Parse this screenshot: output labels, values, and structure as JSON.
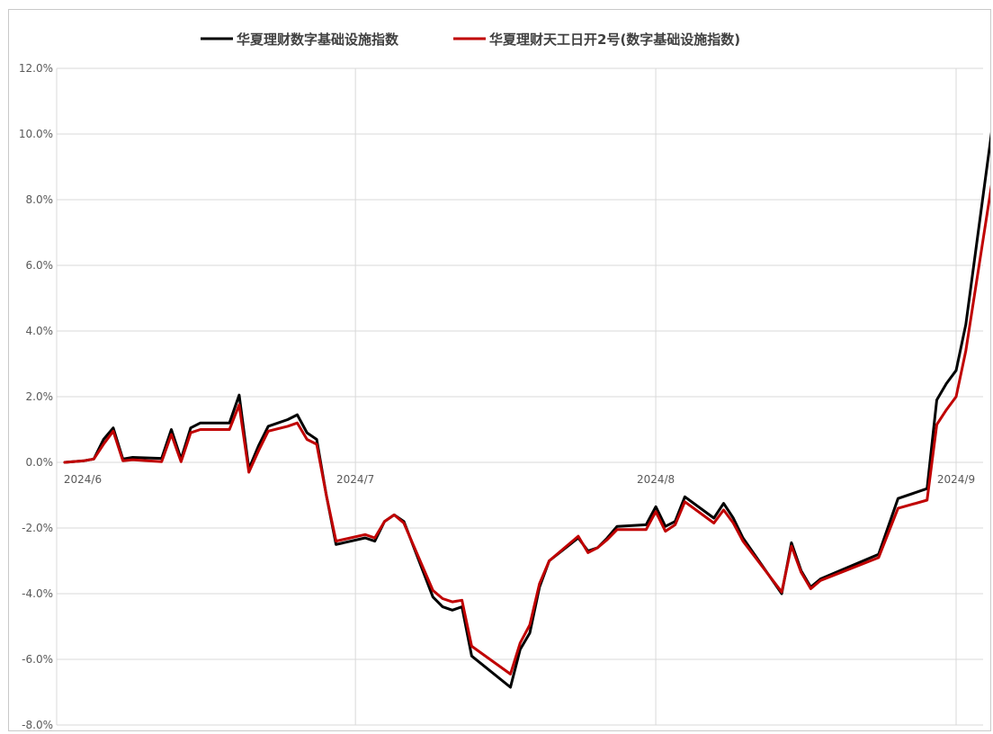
{
  "chart_data": {
    "type": "line",
    "title": "",
    "xlabel": "",
    "ylabel": "",
    "ylim": [
      -8,
      12
    ],
    "y_ticks": [
      12,
      10,
      8,
      6,
      4,
      2,
      0,
      -2,
      -4,
      -6,
      -8
    ],
    "y_tick_labels": [
      "12.0%",
      "10.0%",
      "8.0%",
      "6.0%",
      "4.0%",
      "2.0%",
      "0.0%",
      "-2.0%",
      "-4.0%",
      "-6.0%",
      "-8.0%"
    ],
    "x_range": [
      "2024-06-01",
      "2024-09-02"
    ],
    "x_ticks": [
      {
        "date": "2024-06-01",
        "label": "2024/6"
      },
      {
        "date": "2024-07-01",
        "label": "2024/7"
      },
      {
        "date": "2024-08-01",
        "label": "2024/8"
      },
      {
        "date": "2024-09-01",
        "label": "2024/9"
      }
    ],
    "grid": true,
    "legend_position": "top",
    "series": [
      {
        "name": "华夏理财数字基础设施指数",
        "color": "#000000",
        "points": [
          [
            "2024-06-01",
            0.0
          ],
          [
            "2024-06-03",
            0.05
          ],
          [
            "2024-06-04",
            0.1
          ],
          [
            "2024-06-05",
            0.7
          ],
          [
            "2024-06-06",
            1.05
          ],
          [
            "2024-06-07",
            0.1
          ],
          [
            "2024-06-08",
            0.15
          ],
          [
            "2024-06-11",
            0.12
          ],
          [
            "2024-06-12",
            1.0
          ],
          [
            "2024-06-13",
            0.1
          ],
          [
            "2024-06-14",
            1.05
          ],
          [
            "2024-06-15",
            1.2
          ],
          [
            "2024-06-17",
            1.2
          ],
          [
            "2024-06-18",
            1.2
          ],
          [
            "2024-06-19",
            2.05
          ],
          [
            "2024-06-20",
            -0.2
          ],
          [
            "2024-06-21",
            0.5
          ],
          [
            "2024-06-22",
            1.1
          ],
          [
            "2024-06-24",
            1.3
          ],
          [
            "2024-06-25",
            1.45
          ],
          [
            "2024-06-26",
            0.9
          ],
          [
            "2024-06-27",
            0.7
          ],
          [
            "2024-06-28",
            -1.0
          ],
          [
            "2024-06-29",
            -2.5
          ],
          [
            "2024-07-02",
            -2.3
          ],
          [
            "2024-07-03",
            -2.4
          ],
          [
            "2024-07-04",
            -1.8
          ],
          [
            "2024-07-05",
            -1.6
          ],
          [
            "2024-07-06",
            -1.8
          ],
          [
            "2024-07-09",
            -4.1
          ],
          [
            "2024-07-10",
            -4.4
          ],
          [
            "2024-07-11",
            -4.5
          ],
          [
            "2024-07-12",
            -4.4
          ],
          [
            "2024-07-13",
            -5.9
          ],
          [
            "2024-07-17",
            -6.85
          ],
          [
            "2024-07-18",
            -5.7
          ],
          [
            "2024-07-19",
            -5.2
          ],
          [
            "2024-07-20",
            -3.8
          ],
          [
            "2024-07-21",
            -3.0
          ],
          [
            "2024-07-24",
            -2.3
          ],
          [
            "2024-07-25",
            -2.7
          ],
          [
            "2024-07-26",
            -2.6
          ],
          [
            "2024-07-27",
            -2.3
          ],
          [
            "2024-07-28",
            -1.95
          ],
          [
            "2024-07-31",
            -1.9
          ],
          [
            "2024-08-01",
            -1.35
          ],
          [
            "2024-08-02",
            -1.95
          ],
          [
            "2024-08-03",
            -1.8
          ],
          [
            "2024-08-04",
            -1.05
          ],
          [
            "2024-08-07",
            -1.7
          ],
          [
            "2024-08-08",
            -1.25
          ],
          [
            "2024-08-09",
            -1.7
          ],
          [
            "2024-08-10",
            -2.3
          ],
          [
            "2024-08-14",
            -4.0
          ],
          [
            "2024-08-15",
            -2.45
          ],
          [
            "2024-08-16",
            -3.3
          ],
          [
            "2024-08-17",
            -3.8
          ],
          [
            "2024-08-18",
            -3.55
          ],
          [
            "2024-08-24",
            -2.8
          ],
          [
            "2024-08-26",
            -1.1
          ],
          [
            "2024-08-29",
            -0.8
          ],
          [
            "2024-08-30",
            1.9
          ],
          [
            "2024-08-31",
            2.4
          ],
          [
            "2024-09-01",
            2.8
          ],
          [
            "2024-09-02",
            4.2
          ],
          [
            "2024-09-05",
            10.8
          ]
        ]
      },
      {
        "name": "华夏理财天工日开2号(数字基础设施指数)",
        "color": "#c00000",
        "points": [
          [
            "2024-06-01",
            0.0
          ],
          [
            "2024-06-03",
            0.05
          ],
          [
            "2024-06-04",
            0.1
          ],
          [
            "2024-06-05",
            0.55
          ],
          [
            "2024-06-06",
            0.95
          ],
          [
            "2024-06-07",
            0.05
          ],
          [
            "2024-06-08",
            0.08
          ],
          [
            "2024-06-11",
            0.02
          ],
          [
            "2024-06-12",
            0.85
          ],
          [
            "2024-06-13",
            0.02
          ],
          [
            "2024-06-14",
            0.9
          ],
          [
            "2024-06-15",
            1.0
          ],
          [
            "2024-06-17",
            1.0
          ],
          [
            "2024-06-18",
            1.0
          ],
          [
            "2024-06-19",
            1.75
          ],
          [
            "2024-06-20",
            -0.3
          ],
          [
            "2024-06-21",
            0.35
          ],
          [
            "2024-06-22",
            0.95
          ],
          [
            "2024-06-24",
            1.1
          ],
          [
            "2024-06-25",
            1.2
          ],
          [
            "2024-06-26",
            0.7
          ],
          [
            "2024-06-27",
            0.55
          ],
          [
            "2024-06-28",
            -1.0
          ],
          [
            "2024-06-29",
            -2.4
          ],
          [
            "2024-07-02",
            -2.2
          ],
          [
            "2024-07-03",
            -2.3
          ],
          [
            "2024-07-04",
            -1.8
          ],
          [
            "2024-07-05",
            -1.6
          ],
          [
            "2024-07-06",
            -1.85
          ],
          [
            "2024-07-09",
            -3.9
          ],
          [
            "2024-07-10",
            -4.15
          ],
          [
            "2024-07-11",
            -4.25
          ],
          [
            "2024-07-12",
            -4.2
          ],
          [
            "2024-07-13",
            -5.6
          ],
          [
            "2024-07-17",
            -6.45
          ],
          [
            "2024-07-18",
            -5.5
          ],
          [
            "2024-07-19",
            -4.95
          ],
          [
            "2024-07-20",
            -3.7
          ],
          [
            "2024-07-21",
            -3.0
          ],
          [
            "2024-07-24",
            -2.25
          ],
          [
            "2024-07-25",
            -2.75
          ],
          [
            "2024-07-26",
            -2.6
          ],
          [
            "2024-07-27",
            -2.35
          ],
          [
            "2024-07-28",
            -2.05
          ],
          [
            "2024-07-31",
            -2.05
          ],
          [
            "2024-08-01",
            -1.5
          ],
          [
            "2024-08-02",
            -2.1
          ],
          [
            "2024-08-03",
            -1.9
          ],
          [
            "2024-08-04",
            -1.2
          ],
          [
            "2024-08-07",
            -1.85
          ],
          [
            "2024-08-08",
            -1.45
          ],
          [
            "2024-08-09",
            -1.85
          ],
          [
            "2024-08-10",
            -2.4
          ],
          [
            "2024-08-14",
            -3.95
          ],
          [
            "2024-08-15",
            -2.55
          ],
          [
            "2024-08-16",
            -3.35
          ],
          [
            "2024-08-17",
            -3.85
          ],
          [
            "2024-08-18",
            -3.6
          ],
          [
            "2024-08-24",
            -2.9
          ],
          [
            "2024-08-26",
            -1.4
          ],
          [
            "2024-08-29",
            -1.15
          ],
          [
            "2024-08-30",
            1.15
          ],
          [
            "2024-08-31",
            1.6
          ],
          [
            "2024-09-01",
            2.0
          ],
          [
            "2024-09-02",
            3.4
          ],
          [
            "2024-09-05",
            9.1
          ]
        ]
      }
    ]
  }
}
